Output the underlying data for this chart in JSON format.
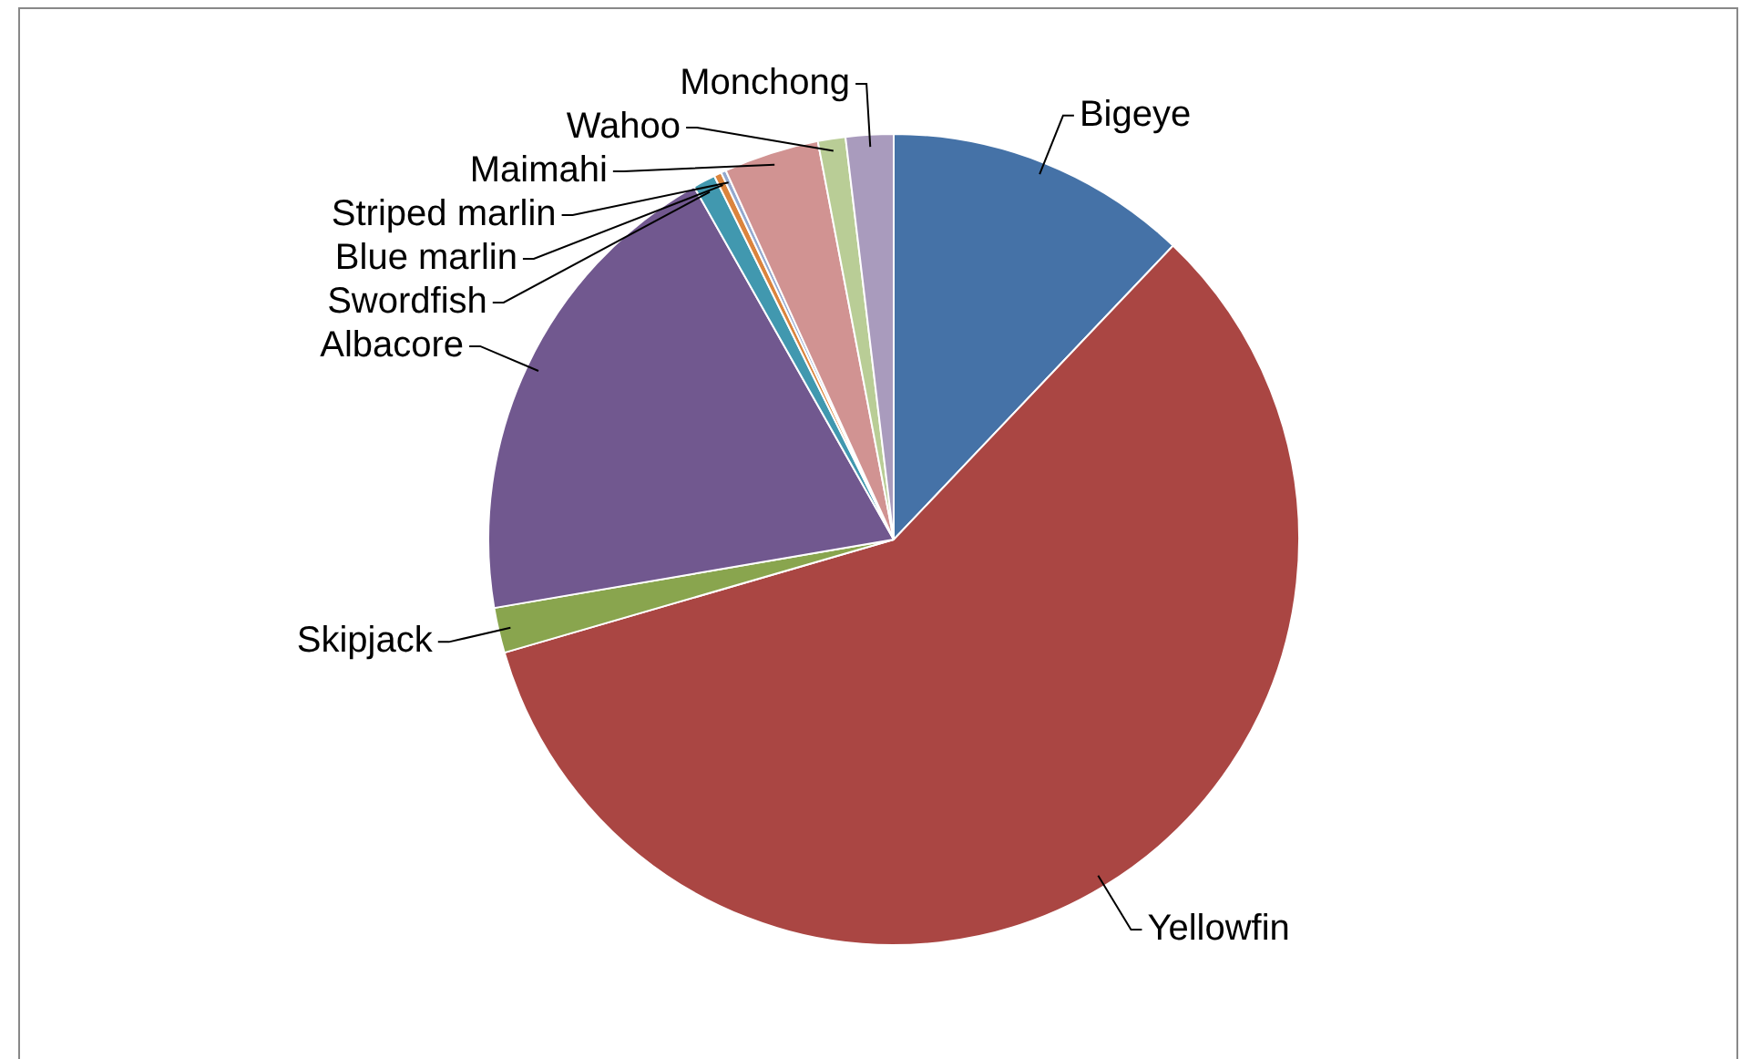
{
  "chart_data": {
    "type": "pie",
    "categories": [
      "Bigeye",
      "Yellowfin",
      "Skipjack",
      "Albacore",
      "Swordfish",
      "Blue marlin",
      "Striped marlin",
      "Maimahi",
      "Wahoo",
      "Monchong"
    ],
    "values": [
      12.1,
      58.4,
      1.8,
      19.5,
      0.9,
      0.3,
      0.2,
      3.8,
      1.1,
      1.9
    ],
    "colors": [
      "#4572a7",
      "#aa4643",
      "#89a54e",
      "#71588f",
      "#4198af",
      "#db843d",
      "#93a9cf",
      "#d19392",
      "#b9cd96",
      "#a99bbd"
    ],
    "legend": false
  }
}
